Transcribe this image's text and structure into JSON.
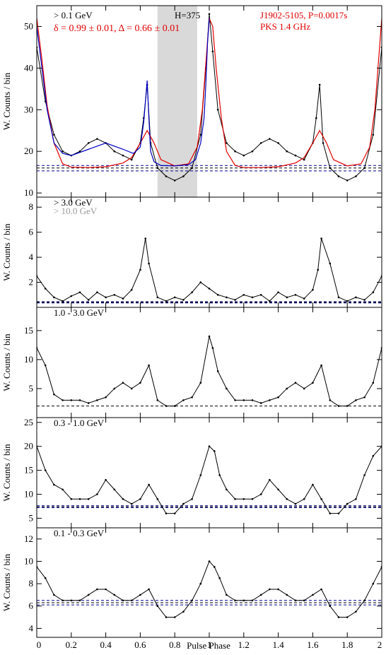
{
  "figure": {
    "xlabel": "Pulse Phase",
    "ylabel": "W. Counts / bin",
    "x_ticks": [
      "0",
      "0.2",
      "0.4",
      "0.6",
      "0.8",
      "1",
      "1.2",
      "1.4",
      "1.6",
      "1.8",
      "2"
    ],
    "colors": {
      "data": "#000000",
      "model_red": "#e00000",
      "model_blue": "#0000c0",
      "background_blue": "#00008b",
      "background_black": "#000000",
      "offpulse_band": "#d9d9d9",
      "gray_label": "#999999"
    }
  },
  "chart_data": [
    {
      "type": "line",
      "panel": "> 0.1 GeV",
      "label": "> 0.1 GeV",
      "annotations": [
        "δ = 0.99 ± 0.01, Δ = 0.66 ± 0.01",
        "H=375",
        "J1902-5105, P=0.0017s",
        "PKS 1.4 GHz"
      ],
      "xlim": [
        0,
        2
      ],
      "ylim": [
        9,
        55
      ],
      "yticks": [
        10,
        20,
        30,
        40,
        50
      ],
      "offpulse_region": [
        0.7,
        0.93
      ],
      "background_levels_blue": [
        15.3,
        16.6
      ],
      "background_level_black": 16.0,
      "x": [
        0.0,
        0.05,
        0.1,
        0.15,
        0.2,
        0.25,
        0.3,
        0.35,
        0.4,
        0.45,
        0.5,
        0.55,
        0.6,
        0.62,
        0.64,
        0.66,
        0.7,
        0.75,
        0.8,
        0.85,
        0.9,
        0.95,
        0.98,
        1.0,
        1.02,
        1.05,
        1.1,
        1.15,
        1.2,
        1.25,
        1.3,
        1.35,
        1.4,
        1.45,
        1.5,
        1.55,
        1.6,
        1.62,
        1.64,
        1.66,
        1.7,
        1.75,
        1.8,
        1.85,
        1.9,
        1.95,
        2.0
      ],
      "y": [
        45,
        32,
        24,
        20,
        19,
        20,
        22,
        23,
        22,
        20,
        19,
        18,
        22,
        28,
        36,
        22,
        16,
        14,
        13,
        14,
        16,
        24,
        40,
        53,
        44,
        30,
        22,
        20,
        19,
        20,
        22,
        23,
        22,
        20,
        19,
        18,
        22,
        28,
        36,
        22,
        16,
        14,
        13,
        14,
        16,
        24,
        45
      ],
      "model_red": {
        "x": [
          0.0,
          0.03,
          0.06,
          0.1,
          0.15,
          0.2,
          0.3,
          0.4,
          0.5,
          0.55,
          0.6,
          0.64,
          0.68,
          0.72,
          0.8,
          0.88,
          0.93,
          0.96,
          0.98,
          1.0,
          1.02,
          1.04,
          1.07,
          1.1,
          1.15,
          1.2,
          1.3,
          1.4,
          1.5,
          1.55,
          1.6,
          1.64,
          1.68,
          1.72,
          1.8,
          1.88,
          1.93,
          1.96,
          1.98,
          2.0
        ],
        "y": [
          52,
          42,
          31,
          22,
          17,
          16.2,
          16.1,
          16.3,
          17.2,
          18.5,
          22,
          25,
          22,
          18,
          16.5,
          17,
          21,
          30,
          41,
          52,
          50,
          40,
          28,
          20,
          16.6,
          16.1,
          16.1,
          16.3,
          17.2,
          18.5,
          22,
          25,
          22,
          18,
          16.5,
          17,
          21,
          30,
          41,
          52
        ]
      },
      "model_blue": {
        "x": [
          0.0,
          0.03,
          0.06,
          0.1,
          0.15,
          0.2,
          0.3,
          0.4,
          0.5,
          0.56,
          0.6,
          0.62,
          0.64,
          0.65,
          0.66,
          0.68,
          0.72,
          0.8,
          0.88,
          0.92,
          0.95,
          0.97,
          0.98,
          0.99,
          1.0
        ],
        "y": [
          50,
          40,
          30,
          22,
          19.5,
          19,
          20.5,
          22,
          20.5,
          19.5,
          21,
          27,
          37,
          28,
          20,
          17.5,
          16.6,
          16.5,
          16.8,
          18,
          22,
          28,
          36,
          46,
          52
        ]
      }
    },
    {
      "type": "line",
      "panel": "> 3.0 GeV",
      "label": "> 3.0 GeV",
      "secondary_label": "> 10.0 GeV",
      "xlim": [
        0,
        2
      ],
      "ylim": [
        0,
        8.8
      ],
      "yticks": [
        2,
        4,
        6,
        8
      ],
      "background_levels_blue": [
        0.35,
        0.45
      ],
      "background_level_black": 0.4,
      "x": [
        0.0,
        0.05,
        0.1,
        0.15,
        0.2,
        0.25,
        0.3,
        0.35,
        0.4,
        0.45,
        0.5,
        0.55,
        0.6,
        0.63,
        0.65,
        0.7,
        0.75,
        0.8,
        0.85,
        0.9,
        0.95,
        1.0,
        1.05,
        1.1,
        1.15,
        1.2,
        1.25,
        1.3,
        1.35,
        1.4,
        1.45,
        1.5,
        1.55,
        1.6,
        1.63,
        1.65,
        1.7,
        1.75,
        1.8,
        1.85,
        1.9,
        1.95,
        2.0
      ],
      "y": [
        2.5,
        1.5,
        0.8,
        0.5,
        0.9,
        1.2,
        0.6,
        1.2,
        0.8,
        1.0,
        0.7,
        1.4,
        3.0,
        5.5,
        3.5,
        0.8,
        0.5,
        0.8,
        0.6,
        1.2,
        2.0,
        1.5,
        1.0,
        0.8,
        0.6,
        1.0,
        0.8,
        1.0,
        0.5,
        1.2,
        0.8,
        1.0,
        0.7,
        1.4,
        3.0,
        5.5,
        3.5,
        0.8,
        0.5,
        0.8,
        0.6,
        1.2,
        2.5
      ]
    },
    {
      "type": "line",
      "panel": "1.0 - 3.0 GeV",
      "label": "1.0 - 3.0 GeV",
      "xlim": [
        0,
        2
      ],
      "ylim": [
        0,
        19
      ],
      "yticks": [
        5,
        10,
        15
      ],
      "background_level_black": 2.0,
      "x": [
        0.0,
        0.05,
        0.1,
        0.15,
        0.2,
        0.25,
        0.3,
        0.35,
        0.4,
        0.45,
        0.5,
        0.55,
        0.6,
        0.65,
        0.7,
        0.75,
        0.8,
        0.85,
        0.9,
        0.95,
        1.0,
        1.02,
        1.05,
        1.1,
        1.15,
        1.2,
        1.25,
        1.3,
        1.35,
        1.4,
        1.45,
        1.5,
        1.55,
        1.6,
        1.65,
        1.7,
        1.75,
        1.8,
        1.85,
        1.9,
        1.95,
        2.0
      ],
      "y": [
        12,
        9,
        4,
        3,
        3,
        3,
        2.5,
        3,
        3.5,
        5,
        6,
        5,
        6,
        9,
        3,
        2,
        2,
        3,
        3.5,
        6,
        14,
        12,
        8,
        5,
        3,
        3,
        3,
        2.5,
        3,
        3.5,
        5,
        6,
        5,
        6,
        9,
        3,
        2,
        2,
        3,
        3.5,
        6,
        12
      ]
    },
    {
      "type": "line",
      "panel": "0.3 - 1.0 GeV",
      "label": "0.3 - 1.0 GeV",
      "xlim": [
        0,
        2
      ],
      "ylim": [
        3,
        26
      ],
      "yticks": [
        5,
        10,
        15,
        20,
        25
      ],
      "background_levels_blue": [
        7.2,
        7.6
      ],
      "background_level_black": 7.4,
      "x": [
        0.0,
        0.05,
        0.1,
        0.15,
        0.2,
        0.25,
        0.3,
        0.35,
        0.4,
        0.45,
        0.5,
        0.55,
        0.6,
        0.65,
        0.7,
        0.75,
        0.8,
        0.85,
        0.9,
        0.95,
        1.0,
        1.03,
        1.06,
        1.1,
        1.15,
        1.2,
        1.25,
        1.3,
        1.35,
        1.4,
        1.45,
        1.5,
        1.55,
        1.6,
        1.65,
        1.7,
        1.75,
        1.8,
        1.85,
        1.9,
        1.95,
        2.0
      ],
      "y": [
        20,
        15,
        12,
        11,
        9,
        9,
        9,
        10,
        13,
        11,
        9,
        8,
        9,
        12,
        9,
        6,
        6,
        8,
        9,
        14,
        20,
        19,
        14,
        11,
        9,
        9,
        9,
        10,
        13,
        11,
        9,
        8,
        9,
        12,
        9,
        6,
        6,
        8,
        9,
        14,
        18,
        20
      ]
    },
    {
      "type": "line",
      "panel": "0.1 - 0.3 GeV",
      "label": "0.1 - 0.3 GeV",
      "xlim": [
        0,
        2
      ],
      "ylim": [
        3.2,
        13
      ],
      "yticks": [
        4,
        6,
        8,
        10,
        12
      ],
      "background_levels_blue": [
        6.1,
        6.5
      ],
      "background_level_black": 6.3,
      "x": [
        0.0,
        0.05,
        0.1,
        0.15,
        0.2,
        0.25,
        0.3,
        0.35,
        0.4,
        0.45,
        0.5,
        0.55,
        0.6,
        0.65,
        0.7,
        0.75,
        0.8,
        0.85,
        0.9,
        0.95,
        1.0,
        1.03,
        1.06,
        1.1,
        1.15,
        1.2,
        1.25,
        1.3,
        1.35,
        1.4,
        1.45,
        1.5,
        1.55,
        1.6,
        1.65,
        1.7,
        1.75,
        1.8,
        1.85,
        1.9,
        1.95,
        2.0
      ],
      "y": [
        9.5,
        8.5,
        7,
        6.5,
        6.5,
        6.5,
        7,
        7.5,
        7.5,
        7,
        6.5,
        6.5,
        7,
        7.5,
        6,
        5,
        5,
        5.5,
        6.5,
        8,
        10,
        9.5,
        8.5,
        7,
        6.5,
        6.5,
        6.5,
        7,
        7.5,
        7.5,
        7,
        6.5,
        6.5,
        7,
        7.5,
        6,
        5,
        5,
        5.5,
        6.5,
        8,
        9.5
      ]
    }
  ]
}
